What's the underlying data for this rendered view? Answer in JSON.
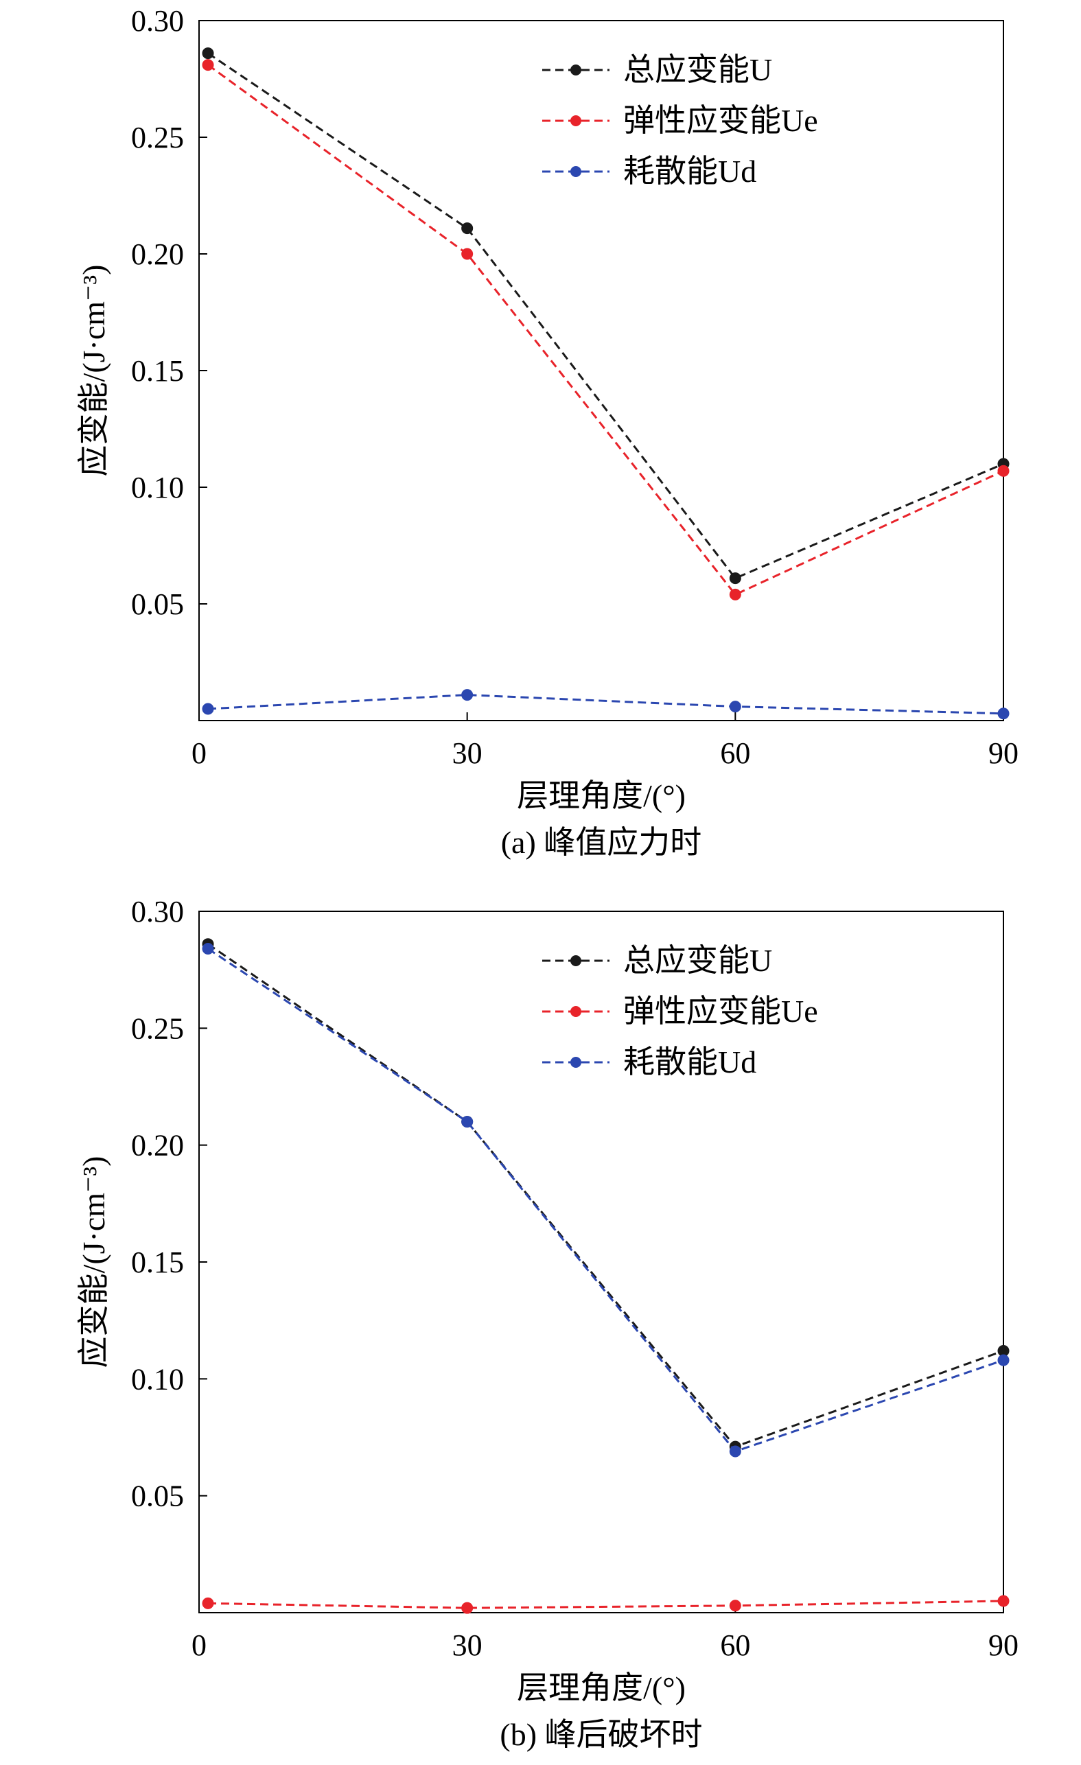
{
  "chart_data": [
    {
      "type": "line",
      "caption": "(a) 峰值应力时",
      "xlabel": "层理角度/(°)",
      "ylabel": "应变能/(J·cm⁻³)",
      "xlim": [
        0,
        90
      ],
      "ylim": [
        0,
        0.3
      ],
      "x_ticks": [
        "0",
        "30",
        "60",
        "90"
      ],
      "y_ticks": [
        "0.05",
        "0.10",
        "0.15",
        "0.20",
        "0.25",
        "0.30"
      ],
      "legend_position": "top-right",
      "x": [
        1,
        30,
        60,
        90
      ],
      "series": [
        {
          "name": "总应变能U",
          "color": "#1a1a1a",
          "values": [
            0.286,
            0.211,
            0.061,
            0.11
          ]
        },
        {
          "name": "弹性应变能Ue",
          "color": "#e8232a",
          "values": [
            0.281,
            0.2,
            0.054,
            0.107
          ]
        },
        {
          "name": "耗散能Ud",
          "color": "#2b47b0",
          "values": [
            0.005,
            0.011,
            0.006,
            0.003
          ]
        }
      ]
    },
    {
      "type": "line",
      "caption": "(b) 峰后破坏时",
      "xlabel": "层理角度/(°)",
      "ylabel": "应变能/(J·cm⁻³)",
      "xlim": [
        0,
        90
      ],
      "ylim": [
        0,
        0.3
      ],
      "x_ticks": [
        "0",
        "30",
        "60",
        "90"
      ],
      "y_ticks": [
        "0.05",
        "0.10",
        "0.15",
        "0.20",
        "0.25",
        "0.30"
      ],
      "legend_position": "top-right",
      "x": [
        1,
        30,
        60,
        90
      ],
      "series": [
        {
          "name": "总应变能U",
          "color": "#1a1a1a",
          "values": [
            0.286,
            0.21,
            0.071,
            0.112
          ]
        },
        {
          "name": "弹性应变能Ue",
          "color": "#e8232a",
          "values": [
            0.004,
            0.002,
            0.003,
            0.005
          ]
        },
        {
          "name": "耗散能Ud",
          "color": "#2b47b0",
          "values": [
            0.284,
            0.21,
            0.069,
            0.108
          ]
        }
      ]
    }
  ]
}
